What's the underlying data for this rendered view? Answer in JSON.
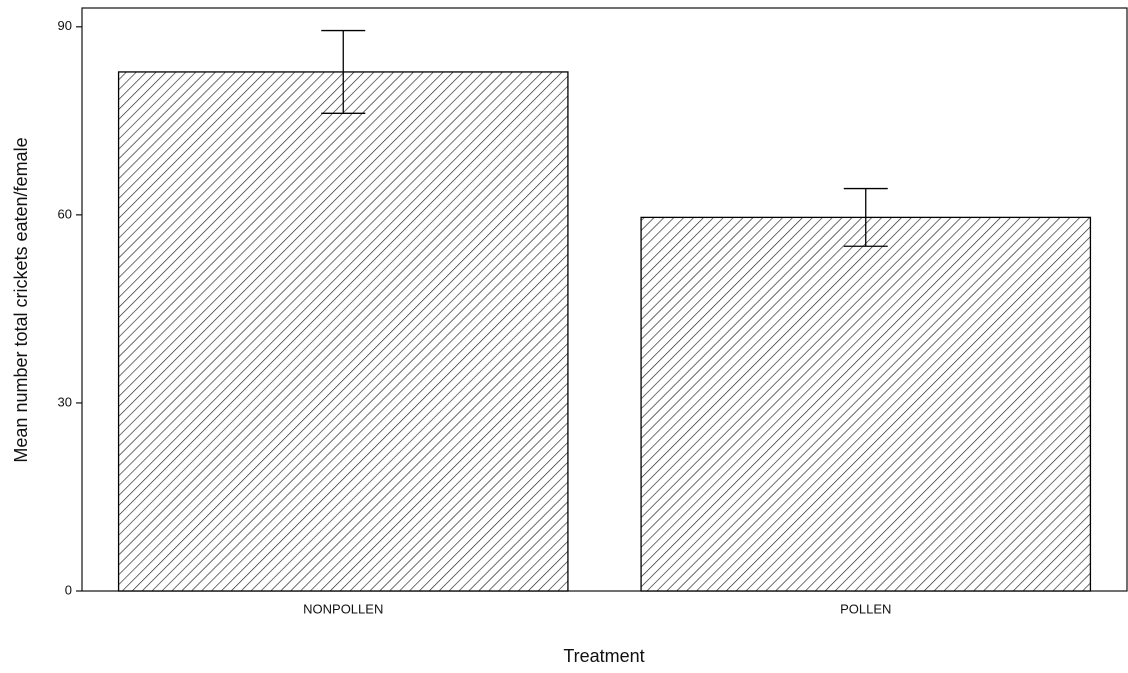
{
  "chart_data": {
    "type": "bar",
    "xlabel": "Treatment",
    "ylabel": "Mean number total crickets eaten/female",
    "categories": [
      "NONPOLLEN",
      "POLLEN"
    ],
    "values": [
      82.8,
      59.6
    ],
    "errors": [
      6.6,
      4.6
    ],
    "color": "#000000",
    "ylim": [
      0,
      93
    ],
    "yticks": [
      0,
      30,
      60,
      90
    ],
    "grid": false
  }
}
